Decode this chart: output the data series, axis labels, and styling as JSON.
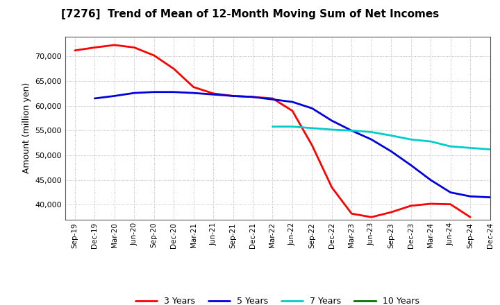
{
  "title": "[7276]  Trend of Mean of 12-Month Moving Sum of Net Incomes",
  "ylabel": "Amount (million yen)",
  "background_color": "#ffffff",
  "plot_bg_color": "#ffffff",
  "grid_color": "#aaaaaa",
  "x_labels": [
    "Sep-19",
    "Dec-19",
    "Mar-20",
    "Jun-20",
    "Sep-20",
    "Dec-20",
    "Mar-21",
    "Jun-21",
    "Sep-21",
    "Dec-21",
    "Mar-22",
    "Jun-22",
    "Sep-22",
    "Dec-22",
    "Mar-23",
    "Jun-23",
    "Sep-23",
    "Dec-23",
    "Mar-24",
    "Jun-24",
    "Sep-24",
    "Dec-24"
  ],
  "series": {
    "3 Years": {
      "color": "#ff0000",
      "data_x": [
        0,
        1,
        2,
        3,
        4,
        5,
        6,
        7,
        8,
        9,
        10,
        11,
        12,
        13,
        14,
        15,
        16,
        17,
        18,
        19,
        20
      ],
      "data_y": [
        71200,
        71800,
        72300,
        71800,
        70200,
        67500,
        63800,
        62500,
        62000,
        61800,
        61500,
        59000,
        52000,
        43500,
        38200,
        37500,
        38500,
        39800,
        40200,
        40100,
        37500
      ]
    },
    "5 Years": {
      "color": "#0000dd",
      "data_x": [
        1,
        2,
        3,
        4,
        5,
        6,
        7,
        8,
        9,
        10,
        11,
        12,
        13,
        14,
        15,
        16,
        17,
        18,
        19,
        20,
        21
      ],
      "data_y": [
        61500,
        62000,
        62600,
        62800,
        62800,
        62600,
        62300,
        62000,
        61800,
        61300,
        60800,
        59500,
        57000,
        55000,
        53200,
        50800,
        48000,
        45000,
        42500,
        41700,
        41500
      ]
    },
    "7 Years": {
      "color": "#00cccc",
      "data_x": [
        10,
        11,
        12,
        13,
        14,
        15,
        16,
        17,
        18,
        19,
        20,
        21
      ],
      "data_y": [
        55800,
        55800,
        55500,
        55200,
        55000,
        54700,
        54000,
        53200,
        52800,
        51800,
        51500,
        51200
      ]
    },
    "10 Years": {
      "color": "#007700",
      "data_x": [],
      "data_y": []
    }
  },
  "ylim": [
    37000,
    74000
  ],
  "yticks": [
    40000,
    45000,
    50000,
    55000,
    60000,
    65000,
    70000
  ],
  "line_width": 2.0
}
